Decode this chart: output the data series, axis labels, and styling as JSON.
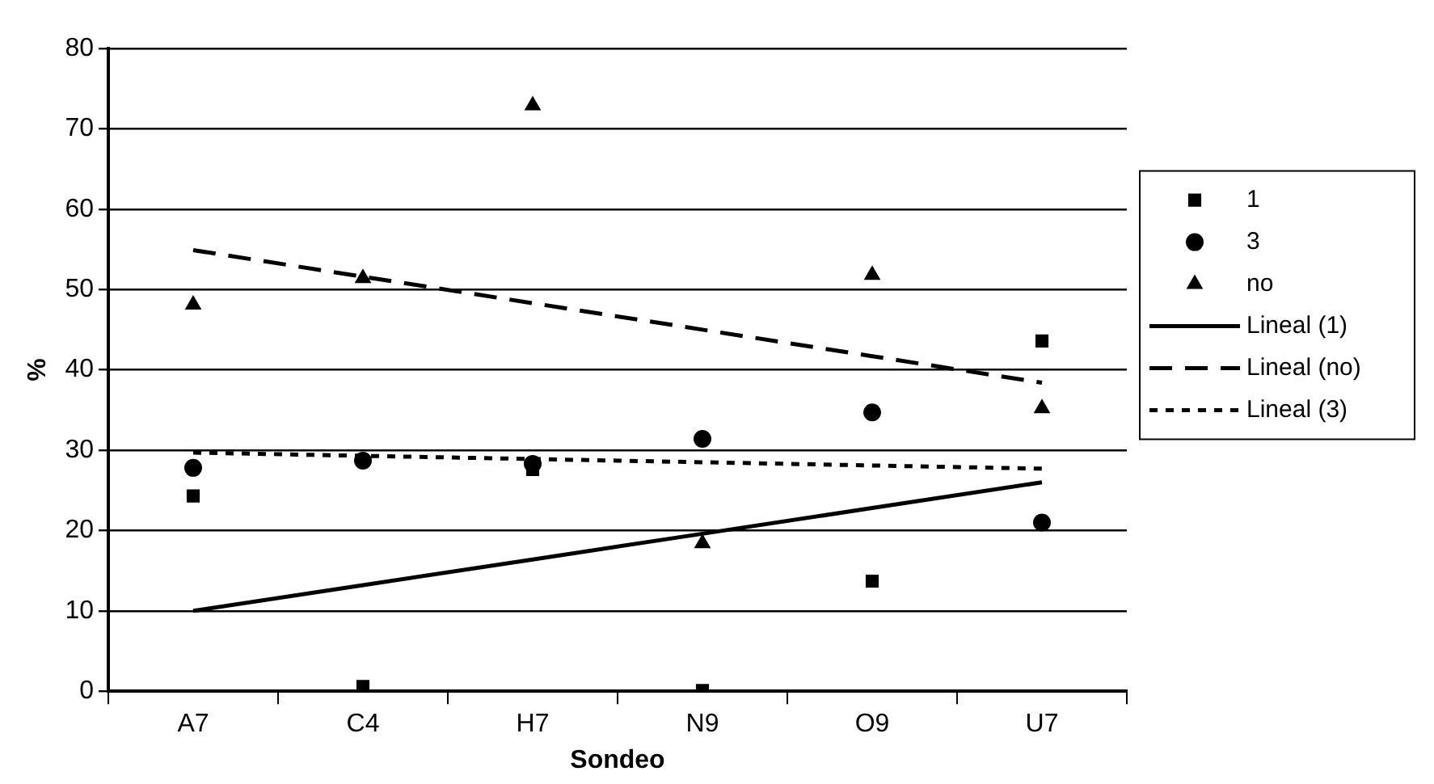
{
  "chart_data": {
    "type": "scatter",
    "xlabel": "Sondeo",
    "ylabel": "%",
    "categories": [
      "A7",
      "C4",
      "H7",
      "N9",
      "O9",
      "U7"
    ],
    "ylim": [
      0,
      80
    ],
    "yticks": [
      0,
      10,
      20,
      30,
      40,
      50,
      60,
      70,
      80
    ],
    "grid": "y",
    "legend": "right",
    "series": [
      {
        "name": "1",
        "color": "#000000",
        "marker": "square",
        "values": [
          24.3,
          0.6,
          27.6,
          0.1,
          13.7,
          43.6
        ]
      },
      {
        "name": "3",
        "color": "#000000",
        "marker": "circle",
        "values": [
          27.8,
          28.7,
          28.3,
          31.4,
          34.7,
          21
        ]
      },
      {
        "name": "no",
        "color": "#000000",
        "marker": "triangle",
        "values": [
          48.1,
          51.4,
          72.9,
          18.4,
          51.8,
          35.2
        ]
      },
      {
        "name": "Lineal (1)",
        "type": "line",
        "color": "#000000",
        "marker": "none",
        "line_style": "solid",
        "values": [
          10,
          13.2,
          16.4,
          19.6,
          22.8,
          26
        ]
      },
      {
        "name": "Lineal (no)",
        "type": "line",
        "color": "#000000",
        "marker": "none",
        "line_style": "dashed",
        "values": [
          54.9,
          51.6,
          48.3,
          45,
          41.7,
          38.4
        ]
      },
      {
        "name": "Lineal (3)",
        "type": "line",
        "color": "#000000",
        "marker": "none",
        "line_style": "dotted",
        "values": [
          29.7,
          29.3,
          28.9,
          28.5,
          28.1,
          27.7
        ]
      }
    ]
  }
}
